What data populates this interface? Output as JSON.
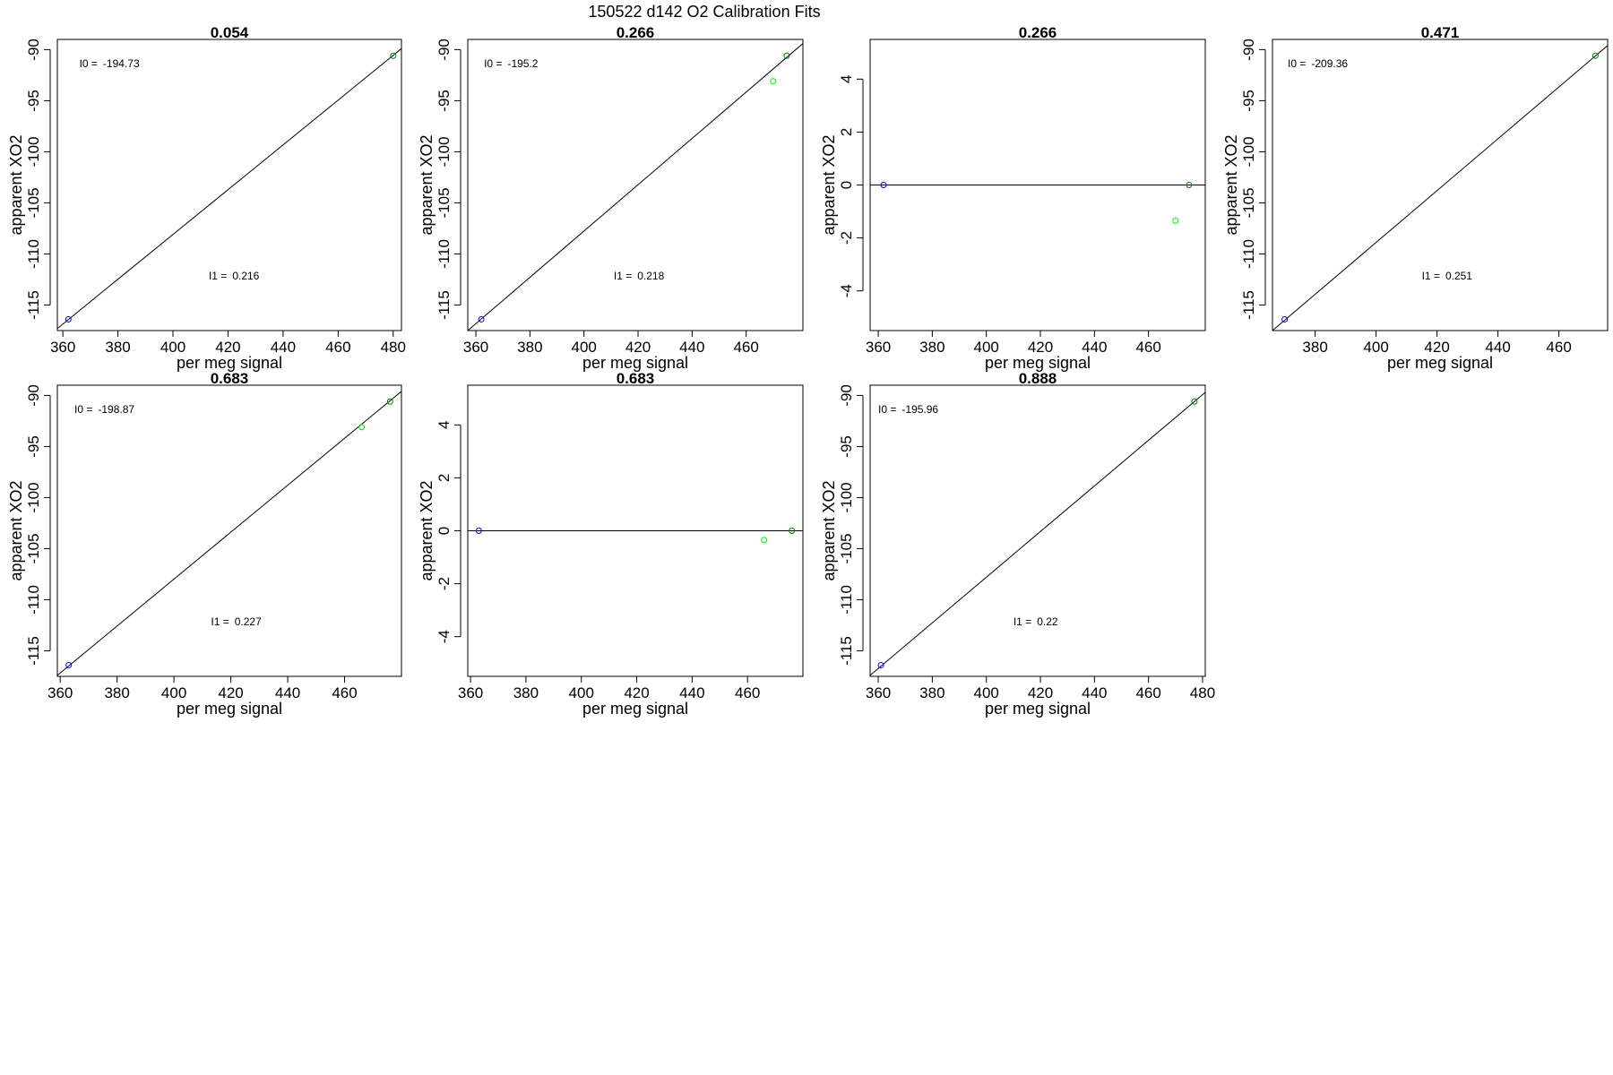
{
  "figure": {
    "title": "150522   d142   O2 Calibration Fits"
  },
  "chart_data": [
    {
      "type": "scatter",
      "title": "0.054",
      "xlabel": "per meg signal",
      "ylabel": "apparent XO2",
      "xlim": [
        358,
        483
      ],
      "ylim": [
        -117.5,
        -89
      ],
      "xticks": [
        360,
        380,
        400,
        420,
        440,
        460,
        480
      ],
      "yticks": [
        -90,
        -95,
        -100,
        -105,
        -110,
        -115
      ],
      "points": [
        {
          "x": 362,
          "y": -116.4,
          "color": "#0000ff"
        },
        {
          "x": 480,
          "y": -90.6,
          "color": "#008000"
        }
      ],
      "fit_line": [
        [
          358,
          -117.3
        ],
        [
          483,
          -89.9
        ]
      ],
      "annotations": [
        {
          "label": "I0 =",
          "value": "-194.73",
          "x": 366,
          "y": -91.7
        },
        {
          "label": "I1 =",
          "value": "0.216",
          "x": 413,
          "y": -112.5
        }
      ]
    },
    {
      "type": "scatter",
      "title": "0.266",
      "xlabel": "per meg signal",
      "ylabel": "apparent XO2",
      "xlim": [
        357,
        481
      ],
      "ylim": [
        -117.5,
        -89
      ],
      "xticks": [
        360,
        380,
        400,
        420,
        440,
        460
      ],
      "yticks": [
        -90,
        -95,
        -100,
        -105,
        -110,
        -115
      ],
      "points": [
        {
          "x": 362,
          "y": -116.4,
          "color": "#0000ff"
        },
        {
          "x": 475,
          "y": -90.6,
          "color": "#008000"
        },
        {
          "x": 470,
          "y": -93.1,
          "color": "#00ee00"
        }
      ],
      "fit_line": [
        [
          357,
          -117.5
        ],
        [
          481,
          -89.4
        ]
      ],
      "annotations": [
        {
          "label": "I0 =",
          "value": "-195.2",
          "x": 363,
          "y": -91.7
        },
        {
          "label": "I1 =",
          "value": "0.218",
          "x": 411,
          "y": -112.5
        }
      ]
    },
    {
      "type": "scatter",
      "title": "0.266",
      "xlabel": "per meg signal",
      "ylabel": "apparent XO2",
      "xlim": [
        357,
        481
      ],
      "ylim": [
        -5.5,
        5.5
      ],
      "xticks": [
        360,
        380,
        400,
        420,
        440,
        460
      ],
      "yticks": [
        4,
        2,
        0,
        -2,
        -4
      ],
      "points": [
        {
          "x": 362,
          "y": 0,
          "color": "#0000ff"
        },
        {
          "x": 475,
          "y": 0,
          "color": "#008000"
        },
        {
          "x": 470,
          "y": -1.35,
          "color": "#00ee00"
        }
      ],
      "fit_line": [
        [
          357,
          0
        ],
        [
          481,
          0
        ]
      ],
      "annotations": []
    },
    {
      "type": "scatter",
      "title": "0.471",
      "xlabel": "per meg signal",
      "ylabel": "apparent XO2",
      "xlim": [
        366,
        476
      ],
      "ylim": [
        -117.5,
        -89
      ],
      "xticks": [
        380,
        400,
        420,
        440,
        460
      ],
      "yticks": [
        -90,
        -95,
        -100,
        -105,
        -110,
        -115
      ],
      "points": [
        {
          "x": 370,
          "y": -116.4,
          "color": "#0000ff"
        },
        {
          "x": 472,
          "y": -90.6,
          "color": "#008000"
        }
      ],
      "fit_line": [
        [
          366,
          -117.5
        ],
        [
          476,
          -89.6
        ]
      ],
      "annotations": [
        {
          "label": "I0 =",
          "value": "-209.36",
          "x": 371,
          "y": -91.7
        },
        {
          "label": "I1 =",
          "value": "0.251",
          "x": 415,
          "y": -112.5
        }
      ]
    },
    {
      "type": "scatter",
      "title": "0.683",
      "xlabel": "per meg signal",
      "ylabel": "apparent XO2",
      "xlim": [
        359,
        480
      ],
      "ylim": [
        -117.5,
        -89
      ],
      "xticks": [
        360,
        380,
        400,
        420,
        440,
        460
      ],
      "yticks": [
        -90,
        -95,
        -100,
        -105,
        -110,
        -115
      ],
      "points": [
        {
          "x": 363,
          "y": -116.4,
          "color": "#0000ff"
        },
        {
          "x": 476,
          "y": -90.6,
          "color": "#008000"
        },
        {
          "x": 466,
          "y": -93.1,
          "color": "#00ee00"
        }
      ],
      "fit_line": [
        [
          359,
          -117.4
        ],
        [
          480,
          -89.6
        ]
      ],
      "annotations": [
        {
          "label": "I0 =",
          "value": "-198.87",
          "x": 365,
          "y": -91.7
        },
        {
          "label": "I1 =",
          "value": "0.227",
          "x": 413,
          "y": -112.5
        }
      ]
    },
    {
      "type": "scatter",
      "title": "0.683",
      "xlabel": "per meg signal",
      "ylabel": "apparent XO2",
      "xlim": [
        359,
        480
      ],
      "ylim": [
        -5.5,
        5.5
      ],
      "xticks": [
        360,
        380,
        400,
        420,
        440,
        460
      ],
      "yticks": [
        4,
        2,
        0,
        -2,
        -4
      ],
      "points": [
        {
          "x": 363,
          "y": 0,
          "color": "#0000ff"
        },
        {
          "x": 476,
          "y": 0,
          "color": "#008000"
        },
        {
          "x": 466,
          "y": -0.35,
          "color": "#00ee00"
        }
      ],
      "fit_line": [
        [
          359,
          0
        ],
        [
          480,
          0
        ]
      ],
      "annotations": []
    },
    {
      "type": "scatter",
      "title": "0.888",
      "xlabel": "per meg signal",
      "ylabel": "apparent XO2",
      "xlim": [
        357,
        481
      ],
      "ylim": [
        -117.5,
        -89
      ],
      "xticks": [
        360,
        380,
        400,
        420,
        440,
        460,
        480
      ],
      "yticks": [
        -90,
        -95,
        -100,
        -105,
        -110,
        -115
      ],
      "points": [
        {
          "x": 361,
          "y": -116.4,
          "color": "#0000ff"
        },
        {
          "x": 477,
          "y": -90.6,
          "color": "#008000"
        }
      ],
      "fit_line": [
        [
          357,
          -117.4
        ],
        [
          481,
          -89.7
        ]
      ],
      "annotations": [
        {
          "label": "I0 =",
          "value": "-195.96",
          "x": 360,
          "y": -91.7
        },
        {
          "label": "I1 =",
          "value": "0.22",
          "x": 410,
          "y": -112.5
        }
      ]
    }
  ]
}
